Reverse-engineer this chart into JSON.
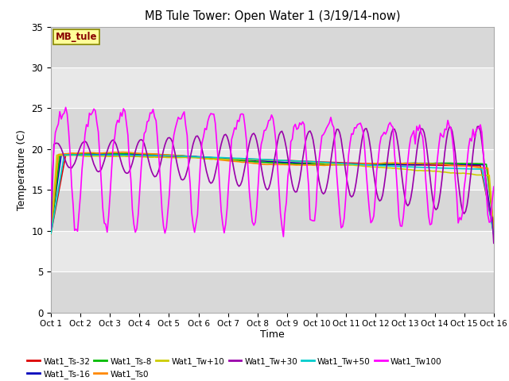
{
  "title": "MB Tule Tower: Open Water 1 (3/19/14-now)",
  "xlabel": "Time",
  "ylabel": "Temperature (C)",
  "xlim": [
    0,
    15
  ],
  "ylim": [
    0,
    35
  ],
  "yticks": [
    0,
    5,
    10,
    15,
    20,
    25,
    30,
    35
  ],
  "xtick_labels": [
    "Oct 1",
    "Oct 2",
    "Oct 3",
    "Oct 4",
    "Oct 5",
    "Oct 6",
    "Oct 7",
    "Oct 8",
    "Oct 9",
    "Oct 10",
    "Oct 11",
    "Oct 12",
    "Oct 13",
    "Oct 14",
    "Oct 15",
    "Oct 16"
  ],
  "series_order": [
    "Wat1_Ts-32",
    "Wat1_Ts-16",
    "Wat1_Ts-8",
    "Wat1_Ts0",
    "Wat1_Tw+10",
    "Wat1_Tw+50",
    "Wat1_Tw+30",
    "Wat1_Tw100"
  ],
  "legend_order": [
    "Wat1_Ts-32",
    "Wat1_Ts-16",
    "Wat1_Ts-8",
    "Wat1_Ts0",
    "Wat1_Tw+10",
    "Wat1_Tw+30",
    "Wat1_Tw+50",
    "Wat1_Tw100"
  ],
  "series": {
    "Wat1_Ts-32": {
      "color": "#dd0000",
      "lw": 1.2
    },
    "Wat1_Ts-16": {
      "color": "#0000bb",
      "lw": 1.2
    },
    "Wat1_Ts-8": {
      "color": "#00bb00",
      "lw": 1.2
    },
    "Wat1_Ts0": {
      "color": "#ff8800",
      "lw": 1.2
    },
    "Wat1_Tw+10": {
      "color": "#cccc00",
      "lw": 1.2
    },
    "Wat1_Tw+30": {
      "color": "#9900aa",
      "lw": 1.2
    },
    "Wat1_Tw+50": {
      "color": "#00cccc",
      "lw": 1.2
    },
    "Wat1_Tw100": {
      "color": "#ff00ff",
      "lw": 1.2
    }
  },
  "band_colors": [
    "#d8d8d8",
    "#e8e8e8"
  ],
  "grid_color": "#ffffff",
  "mb_tule_box": {
    "facecolor": "#ffff99",
    "edgecolor": "#888800",
    "textcolor": "#880000"
  },
  "fig_facecolor": "#ffffff",
  "figsize": [
    6.4,
    4.8
  ],
  "dpi": 100
}
